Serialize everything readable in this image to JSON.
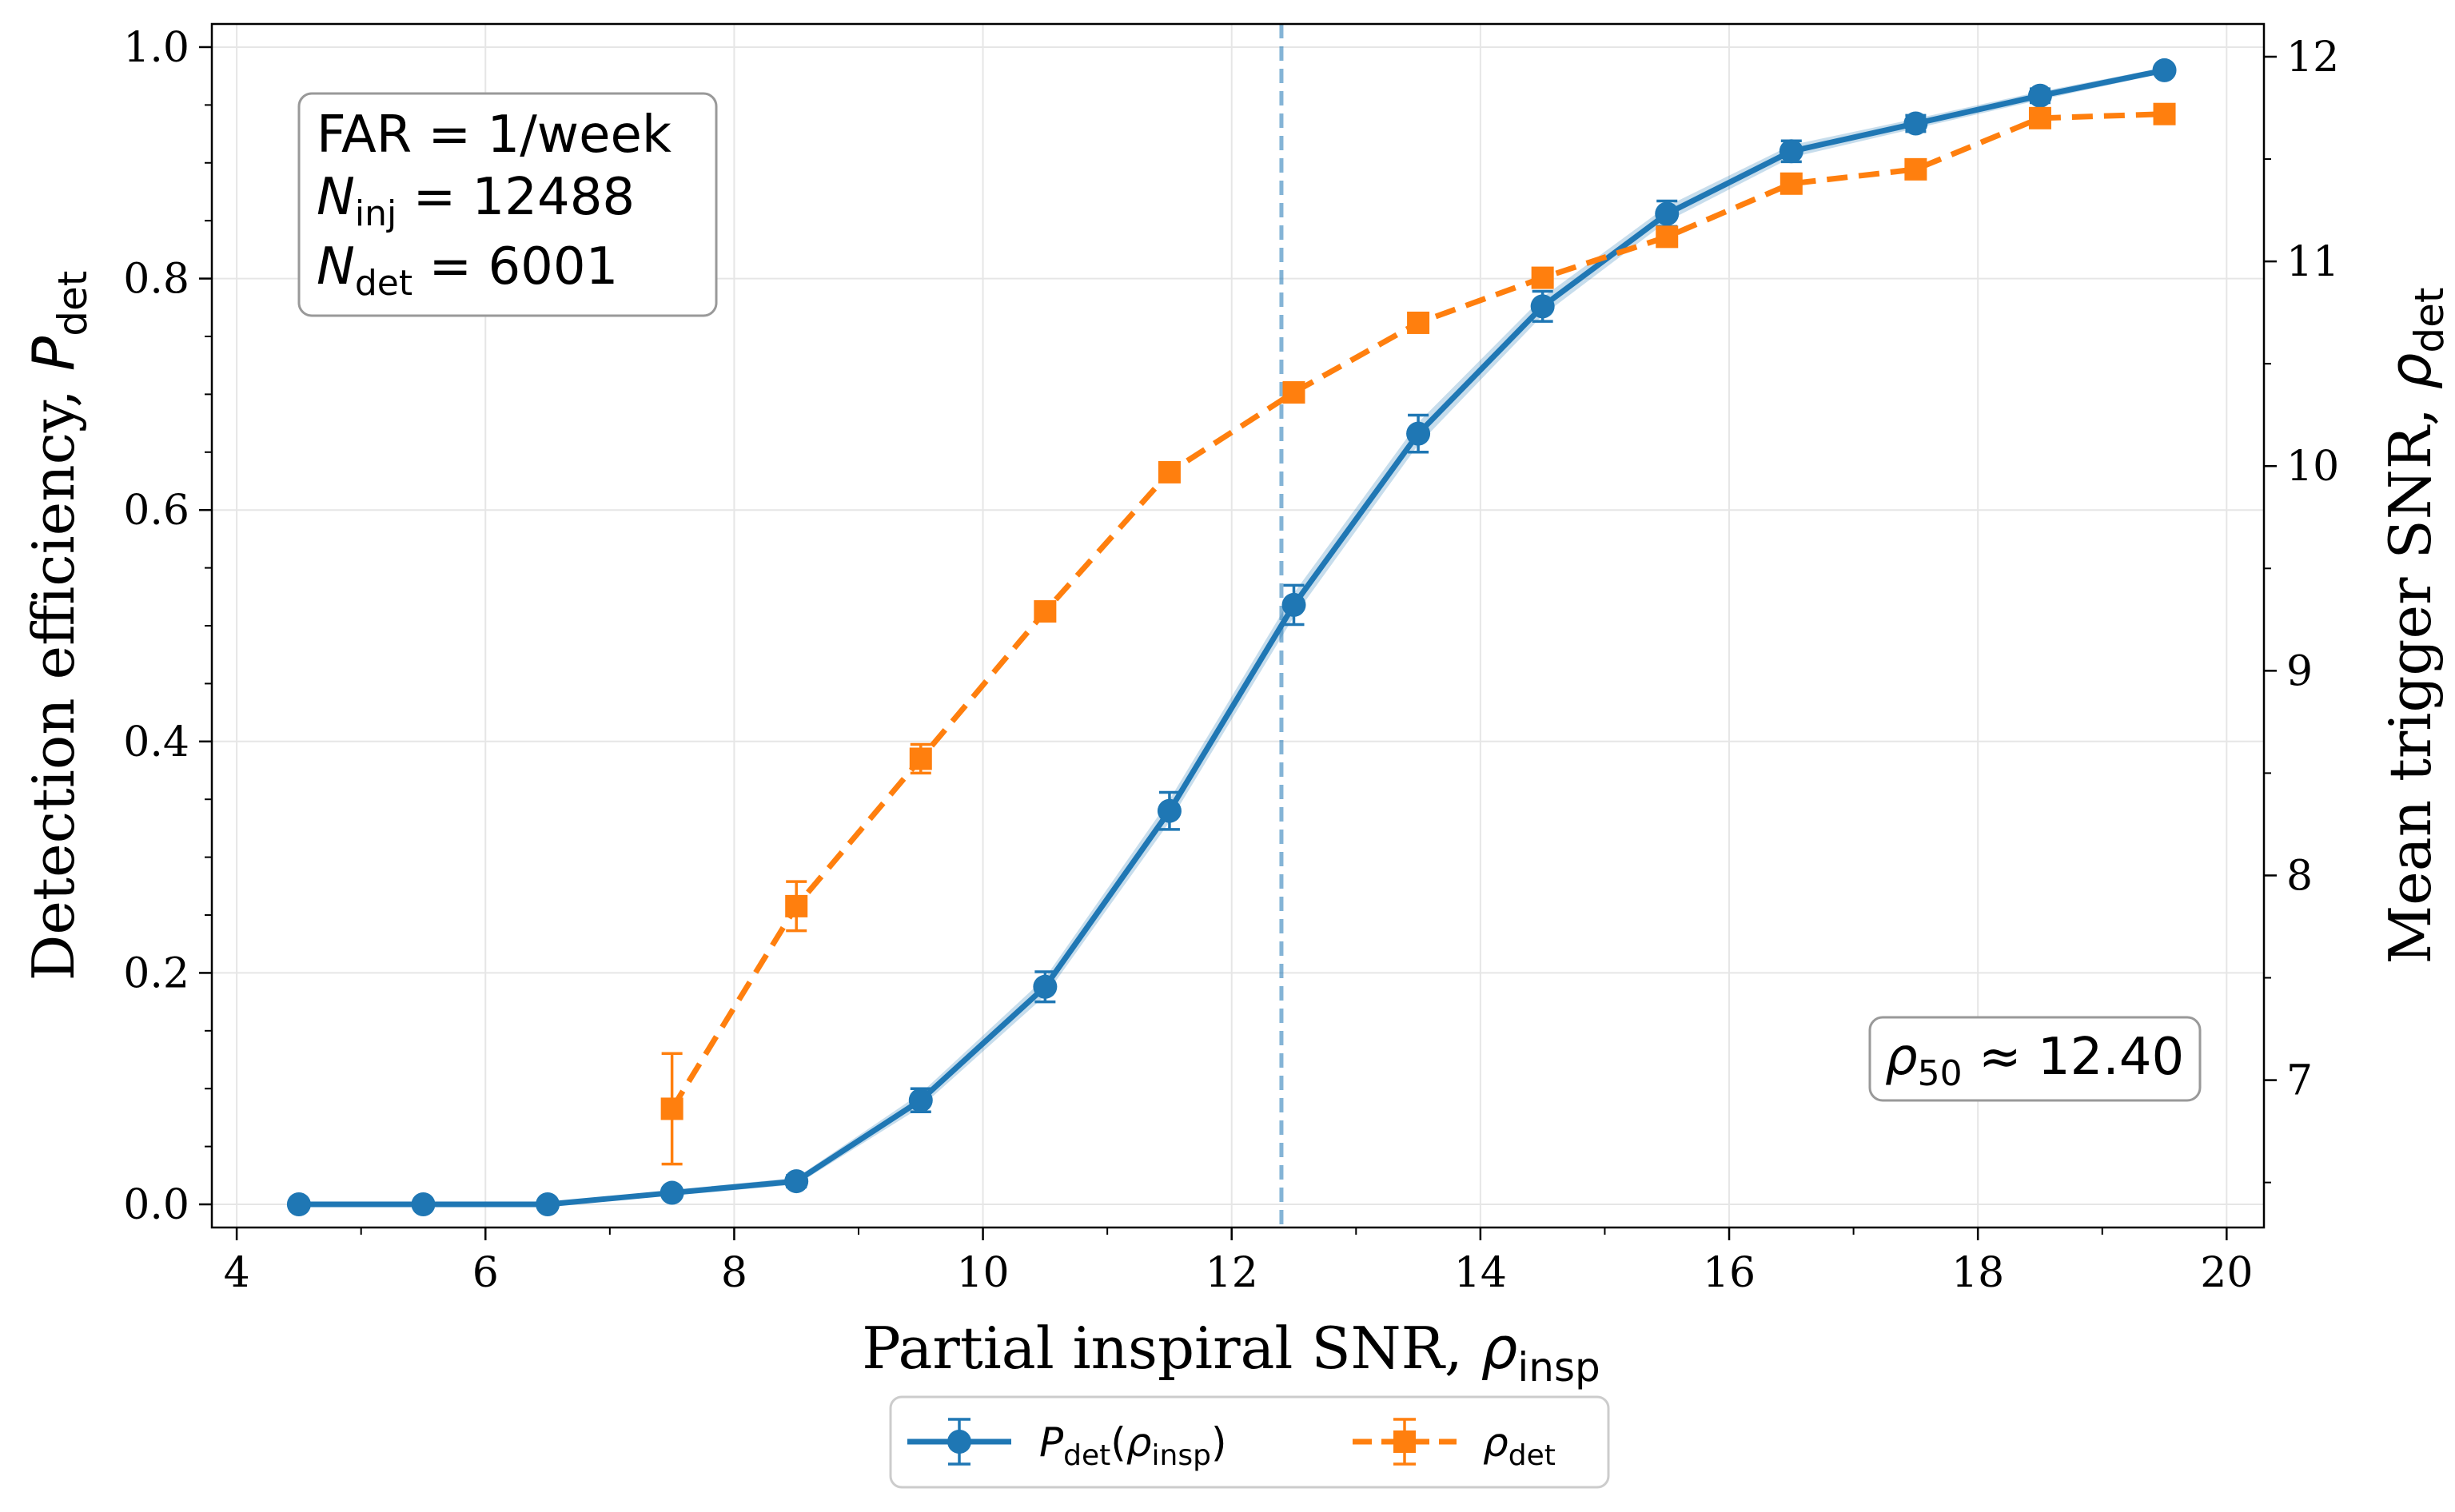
{
  "chart_data": {
    "type": "line",
    "xlabel_text": "Partial inspiral SNR, ",
    "xlabel_sym": "ρ",
    "xlabel_sub": "insp",
    "ylabel_text": "Detection efficiency, ",
    "ylabel_sym": "P",
    "ylabel_sub": "det",
    "y2label_text": "Mean trigger SNR, ",
    "y2label_sym": "ρ",
    "y2label_sub": "det",
    "xlim": [
      3.8,
      20.3
    ],
    "ylim": [
      -0.02,
      1.02
    ],
    "y2lim": [
      6.28,
      12.16
    ],
    "xticks": [
      4,
      6,
      8,
      10,
      12,
      14,
      16,
      18,
      20
    ],
    "yticks": [
      0.0,
      0.2,
      0.4,
      0.6,
      0.8,
      1.0
    ],
    "y2ticks": [
      7,
      8,
      9,
      10,
      11,
      12
    ],
    "vline_x": 12.4,
    "series": [
      {
        "name": "P_det(rho_insp)",
        "axis": "left",
        "color": "#1f77b4",
        "style": "solid",
        "marker": "circle",
        "x": [
          4.5,
          5.5,
          6.5,
          7.5,
          8.5,
          9.5,
          10.5,
          11.5,
          12.5,
          13.5,
          14.5,
          15.5,
          16.5,
          17.5,
          18.5,
          19.5
        ],
        "values": [
          0.0,
          0.0,
          0.0,
          0.01,
          0.02,
          0.09,
          0.188,
          0.34,
          0.518,
          0.666,
          0.776,
          0.856,
          0.91,
          0.934,
          0.958,
          0.98
        ],
        "errors": [
          0.0,
          0.0,
          0.0,
          0.004,
          0.005,
          0.01,
          0.013,
          0.016,
          0.017,
          0.016,
          0.013,
          0.011,
          0.009,
          0.007,
          0.006,
          0.004
        ]
      },
      {
        "name": "rho_det",
        "axis": "right",
        "color": "#ff7f0e",
        "style": "dashed",
        "marker": "square",
        "x": [
          7.5,
          8.5,
          9.5,
          10.5,
          11.5,
          12.5,
          13.5,
          14.5,
          15.5,
          16.5,
          17.5,
          18.5,
          19.5
        ],
        "values": [
          6.86,
          7.85,
          8.57,
          9.29,
          9.97,
          10.36,
          10.7,
          10.92,
          11.12,
          11.38,
          11.45,
          11.7,
          11.72
        ],
        "errors": [
          0.27,
          0.12,
          0.07,
          0.04,
          0.03,
          0.02,
          0.02,
          0.02,
          0.02,
          0.02,
          0.02,
          0.02,
          0.02
        ]
      }
    ]
  },
  "annotations": {
    "far_label": "FAR",
    "far_value": " = 1/week",
    "ninj_sym": "N",
    "ninj_sub": "inj",
    "ninj_value": " = 12488",
    "ndet_sym": "N",
    "ndet_sub": "det",
    "ndet_value": " = 6001",
    "rho50_sym": "ρ",
    "rho50_sub": "50",
    "rho50_value": " ≈ 12.40"
  },
  "legend": {
    "entry1_sym": "P",
    "entry1_sub": "det",
    "entry1_paren_open": "(",
    "entry1_inner_sym": "ρ",
    "entry1_inner_sub": "insp",
    "entry1_paren_close": ")",
    "entry2_sym": "ρ",
    "entry2_sub": "det"
  }
}
